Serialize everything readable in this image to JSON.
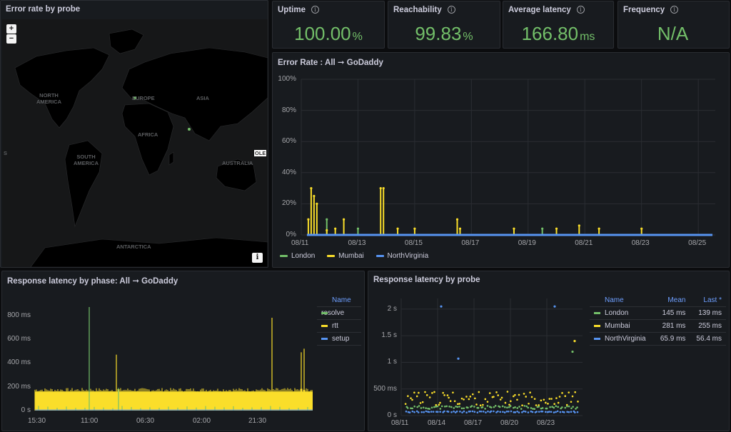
{
  "colors": {
    "green": "#73bf69",
    "yellow": "#fade2a",
    "blue": "#5794f2",
    "link": "#6e9fff"
  },
  "map_panel": {
    "title": "Error rate by probe",
    "zoom_in": "+",
    "zoom_out": "−",
    "info": "i",
    "labels": {
      "north_america": "NORTH\nAMERICA",
      "europe": "EUROPE",
      "asia": "ASIA",
      "africa": "AFRICA",
      "south_america": "SOUTH\nAMERICA",
      "australia": "AUSTRALIA",
      "antarctica": "ANTARCTICA",
      "ole": "OLE",
      "s": "S"
    }
  },
  "stats": [
    {
      "title": "Uptime",
      "value": "100.00",
      "unit": "%"
    },
    {
      "title": "Reachability",
      "value": "99.83",
      "unit": "%"
    },
    {
      "title": "Average latency",
      "value": "166.80",
      "unit": "ms"
    },
    {
      "title": "Frequency",
      "value": "N/A",
      "unit": ""
    }
  ],
  "error_rate": {
    "title": "Error Rate : All ➞ GoDaddy"
  },
  "phase": {
    "title": "Response latency by phase: All ➞ GoDaddy",
    "legend_header": "Name"
  },
  "probe": {
    "title": "Response latency by probe",
    "header": {
      "name": "Name",
      "mean": "Mean",
      "last": "Last *"
    },
    "rows": [
      {
        "name": "London",
        "mean": "145 ms",
        "last": "139 ms"
      },
      {
        "name": "Mumbai",
        "mean": "281 ms",
        "last": "255 ms"
      },
      {
        "name": "NorthVirginia",
        "mean": "65.9 ms",
        "last": "56.4 ms"
      }
    ]
  },
  "chart_data": [
    {
      "type": "line",
      "title": "Error Rate : All ➞ GoDaddy",
      "ylim": [
        0,
        100
      ],
      "yunit": "%",
      "yticks": [
        "100%",
        "80%",
        "60%",
        "40%",
        "20%",
        "0%"
      ],
      "xticks": [
        "08/11",
        "08/13",
        "08/15",
        "08/17",
        "08/19",
        "08/21",
        "08/23",
        "08/25"
      ],
      "x": [
        11.25,
        11.35,
        11.45,
        11.55,
        11.7,
        11.9,
        12.2,
        12.5,
        13.0,
        13.8,
        13.9,
        14.0,
        14.4,
        15.0,
        16.5,
        16.6,
        18.5,
        19.5,
        20.0,
        20.8,
        21.5,
        23.0
      ],
      "series": [
        {
          "name": "London",
          "color": "#73bf69",
          "values": [
            0,
            0,
            0,
            0,
            0,
            10,
            0,
            0,
            4,
            0,
            0,
            0,
            0,
            0,
            0,
            0,
            0,
            4,
            0,
            0,
            0,
            0
          ]
        },
        {
          "name": "Mumbai",
          "color": "#fade2a",
          "values": [
            10,
            30,
            25,
            20,
            0,
            3,
            4,
            10,
            0,
            30,
            30,
            0,
            4,
            4,
            10,
            4,
            4,
            0,
            4,
            6,
            4,
            4
          ]
        },
        {
          "name": "NorthVirginia",
          "color": "#5794f2",
          "values": [
            0,
            0,
            0,
            0,
            0,
            0,
            0,
            0,
            0,
            0,
            0,
            0,
            0,
            0,
            0,
            0,
            0,
            0,
            0,
            0,
            0,
            0
          ]
        }
      ],
      "grid": true,
      "legend": "bottom"
    },
    {
      "type": "bar",
      "title": "Response latency by phase: All ➞ GoDaddy",
      "ylim": [
        0,
        900
      ],
      "yunit": "ms",
      "yticks": [
        "800 ms",
        "600 ms",
        "400 ms",
        "200 ms",
        "0 s"
      ],
      "xticks": [
        "15:30",
        "11:00",
        "06:30",
        "02:00",
        "21:30"
      ],
      "series": [
        {
          "name": "resolve",
          "color": "#73bf69",
          "spikes": [
            870,
            190
          ]
        },
        {
          "name": "rtt",
          "color": "#fade2a",
          "baseline": 160,
          "spikes": [
            470,
            780,
            490,
            520
          ]
        },
        {
          "name": "setup",
          "color": "#5794f2",
          "baseline": 5
        }
      ],
      "legend": "right"
    },
    {
      "type": "scatter",
      "title": "Response latency by probe",
      "ylim": [
        0,
        2200
      ],
      "yunit": "ms",
      "yticks": [
        "2 s",
        "1.5 s",
        "1 s",
        "500 ms",
        "0 s"
      ],
      "xticks": [
        "08/11",
        "08/14",
        "08/17",
        "08/20",
        "08/23"
      ],
      "series": [
        {
          "name": "London",
          "color": "#73bf69",
          "mean": 145,
          "outliers": [
            1200
          ]
        },
        {
          "name": "Mumbai",
          "color": "#fade2a",
          "mean": 281,
          "outliers": [
            1400
          ]
        },
        {
          "name": "NorthVirginia",
          "color": "#5794f2",
          "mean": 65.9,
          "outliers": [
            2050,
            1070,
            2050
          ]
        }
      ],
      "legend": "right"
    }
  ]
}
